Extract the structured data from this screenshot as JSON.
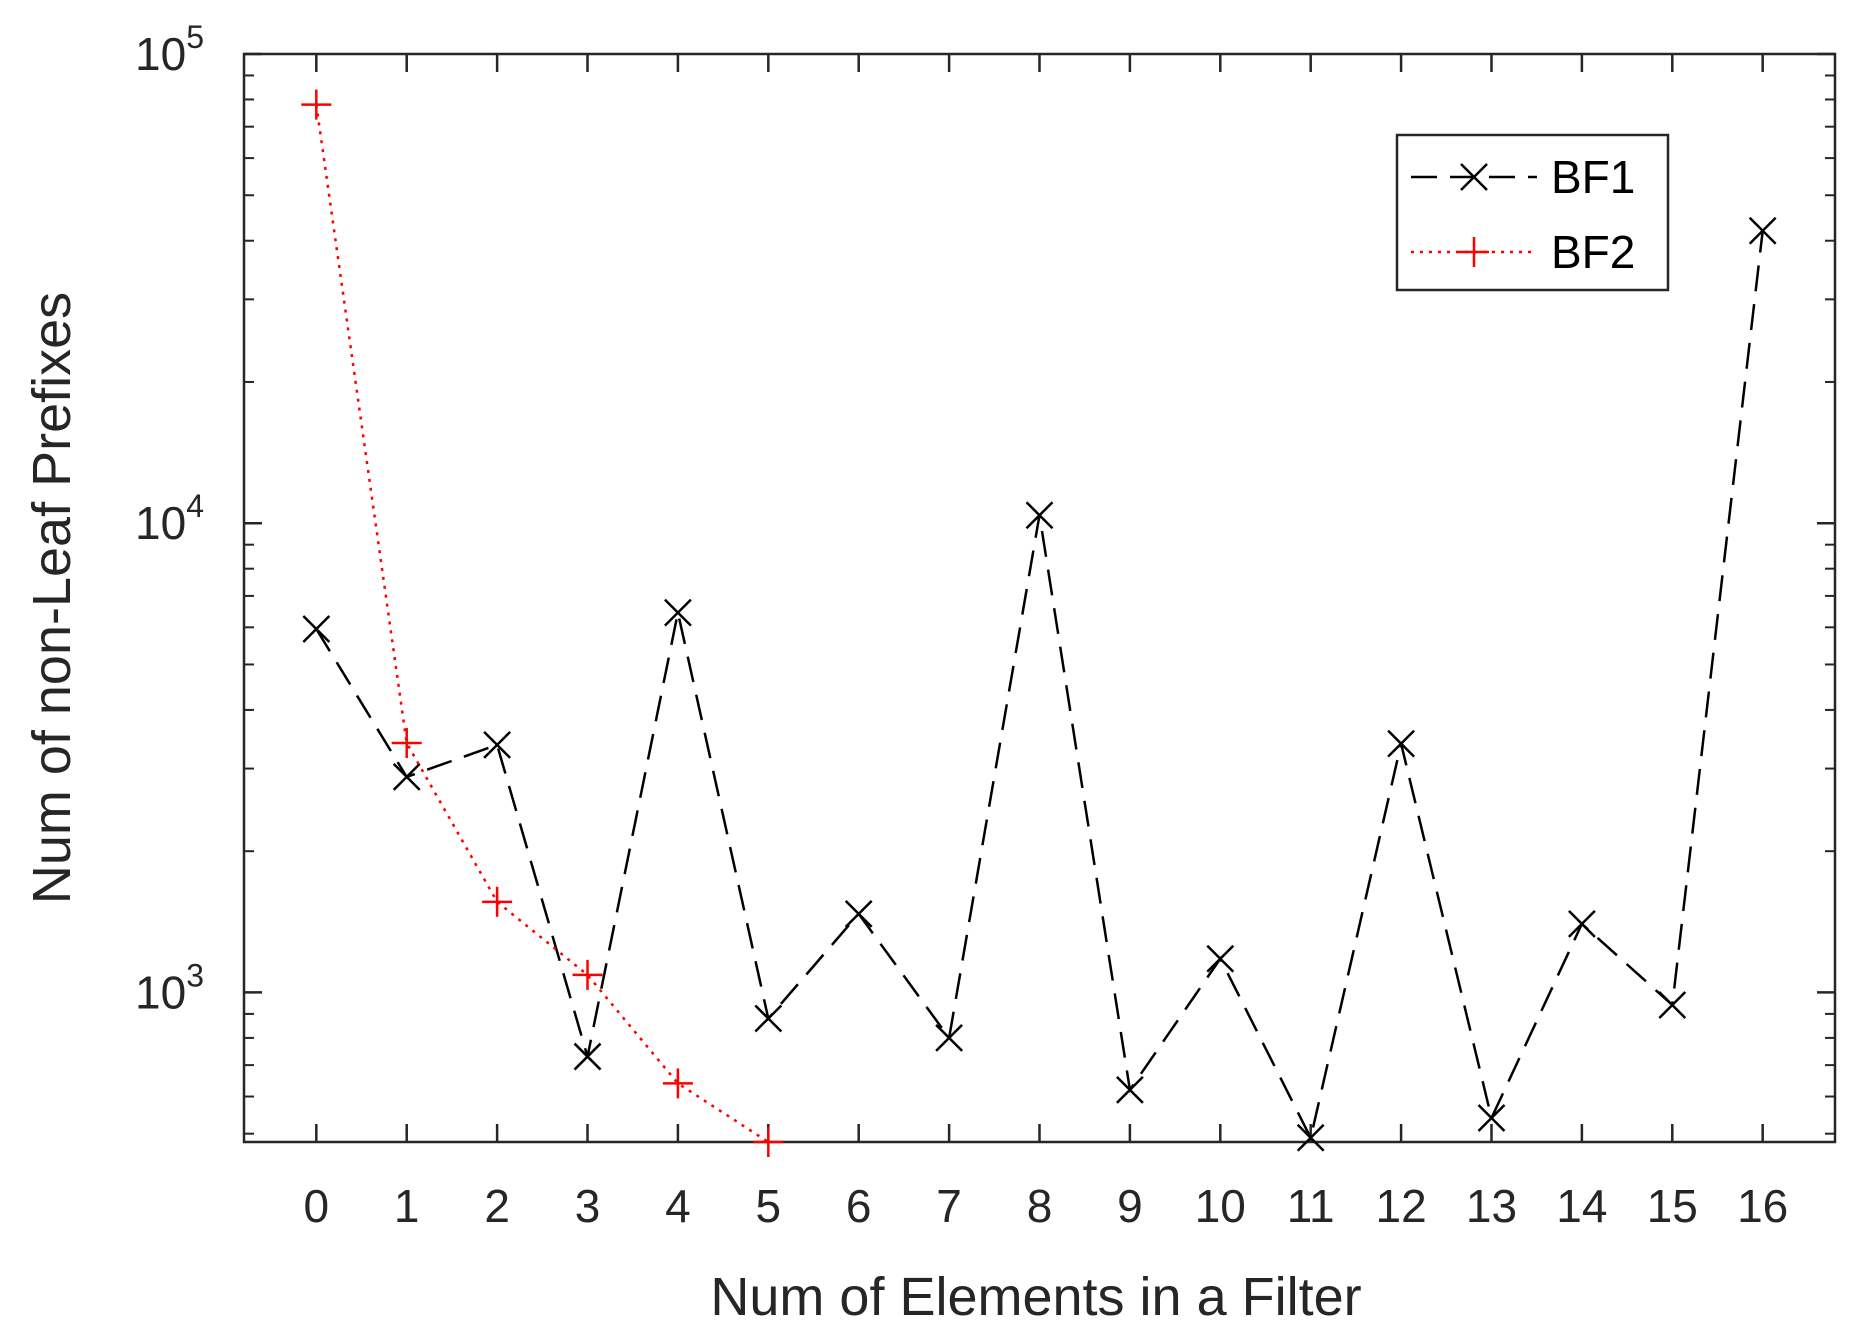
{
  "chart_data": {
    "type": "line",
    "xlabel": "Num of Elements in a Filter",
    "ylabel": "Num of non-Leaf Prefixes",
    "x_ticks": [
      0,
      1,
      2,
      3,
      4,
      5,
      6,
      7,
      8,
      9,
      10,
      11,
      12,
      13,
      14,
      15,
      16
    ],
    "xlim": [
      -0.8,
      16.8
    ],
    "y_scale": "log",
    "ylim": [
      480,
      100000
    ],
    "y_ticks": [
      {
        "value": 1000,
        "base": "10",
        "exp": "3"
      },
      {
        "value": 10000,
        "base": "10",
        "exp": "4"
      },
      {
        "value": 100000,
        "base": "10",
        "exp": "5"
      }
    ],
    "grid": false,
    "legend_position": "top-right",
    "series": [
      {
        "name": "BF1",
        "color": "#000000",
        "line_style": "dashed",
        "marker": "x",
        "x": [
          0,
          1,
          2,
          3,
          4,
          5,
          6,
          7,
          8,
          9,
          10,
          11,
          12,
          13,
          14,
          15,
          16
        ],
        "values": [
          5950,
          2880,
          3370,
          730,
          6450,
          880,
          1470,
          800,
          10400,
          620,
          1180,
          490,
          3390,
          540,
          1400,
          940,
          42000
        ]
      },
      {
        "name": "BF2",
        "color": "#ff0000",
        "line_style": "dotted",
        "marker": "+",
        "x": [
          0,
          1,
          2,
          3,
          4,
          5
        ],
        "values": [
          78000,
          3400,
          1560,
          1090,
          640,
          480
        ]
      }
    ]
  }
}
